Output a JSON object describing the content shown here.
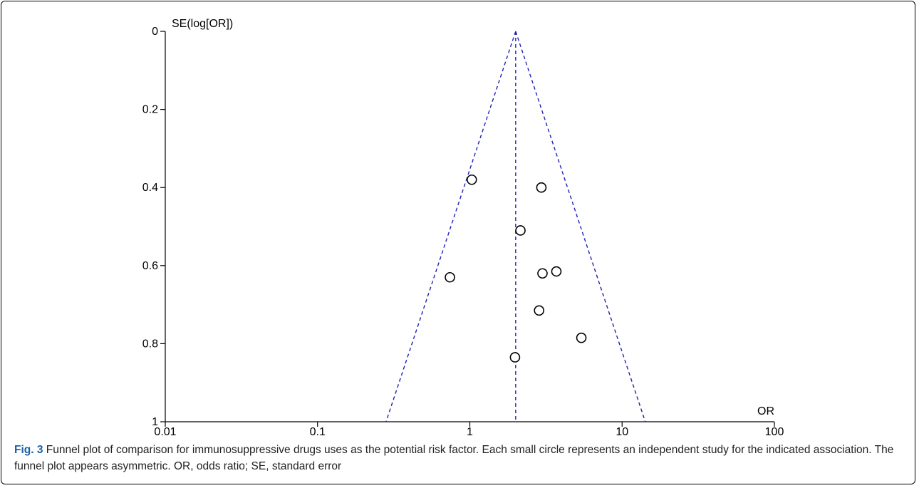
{
  "chart_data": {
    "type": "scatter",
    "xlabel": "OR",
    "ylabel": "SE(log[OR])",
    "x_scale": "log",
    "xlim": [
      0.01,
      100
    ],
    "ylim": [
      0,
      1
    ],
    "y_inverted": true,
    "x_ticks": [
      "0.01",
      "0.1",
      "1",
      "10",
      "100"
    ],
    "y_ticks": [
      "0",
      "0.2",
      "0.4",
      "0.6",
      "0.8",
      "1"
    ],
    "pooled_or": 2.0,
    "funnel_lines": {
      "color": "#1f1fb4",
      "style": "dashed"
    },
    "grid": false,
    "points": [
      {
        "x": 1.03,
        "y": 0.38
      },
      {
        "x": 2.95,
        "y": 0.4
      },
      {
        "x": 2.15,
        "y": 0.51
      },
      {
        "x": 0.74,
        "y": 0.63
      },
      {
        "x": 3.0,
        "y": 0.62
      },
      {
        "x": 3.7,
        "y": 0.615
      },
      {
        "x": 2.85,
        "y": 0.715
      },
      {
        "x": 5.4,
        "y": 0.785
      },
      {
        "x": 1.98,
        "y": 0.835
      }
    ]
  },
  "caption": {
    "label": "Fig. 3",
    "text": " Funnel plot of comparison for immunosuppressive drugs uses as the potential risk factor. Each small circle represents an independent study for the indicated association. The funnel plot appears asymmetric. OR, odds ratio; SE, standard error"
  }
}
